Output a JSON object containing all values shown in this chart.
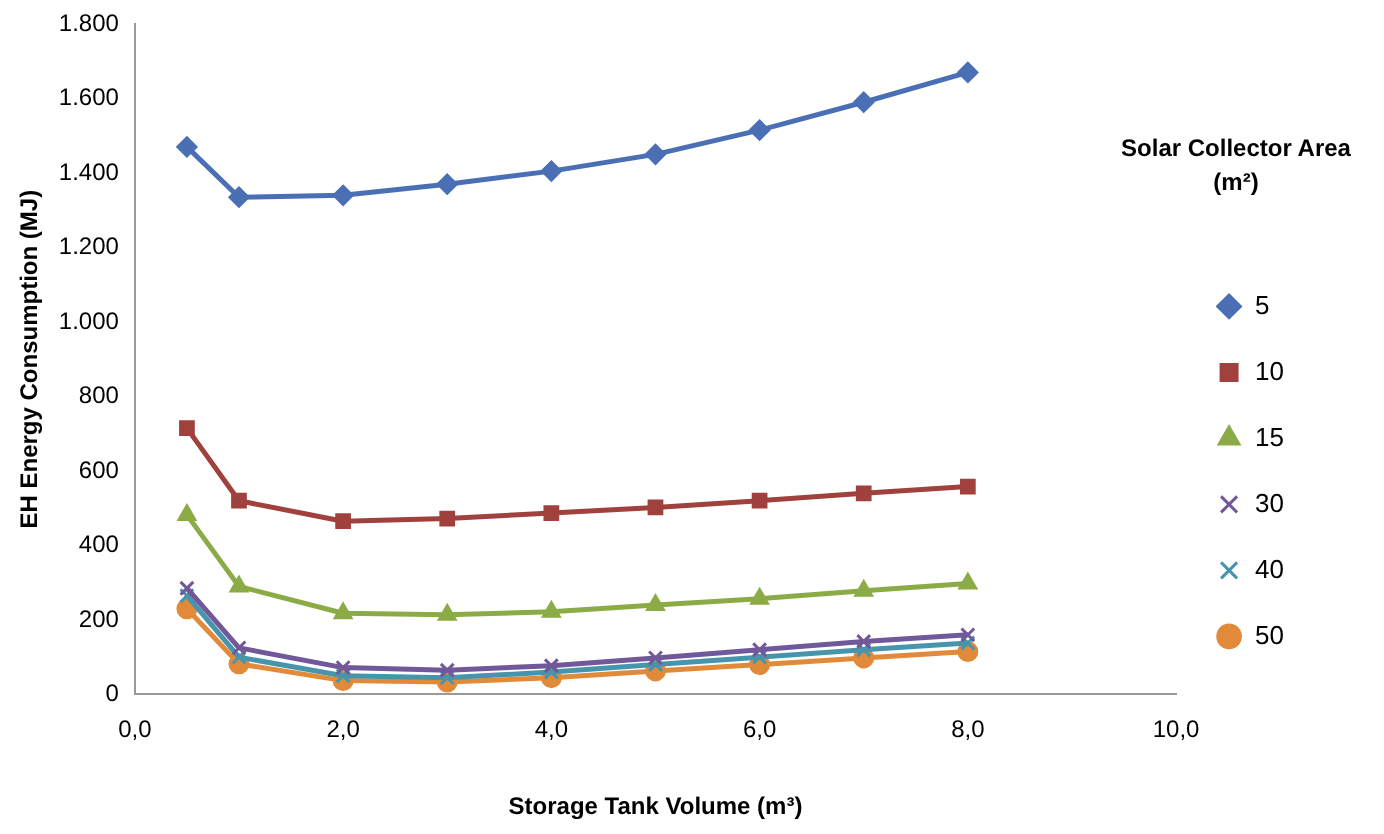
{
  "chart_data": {
    "type": "line",
    "xlabel": "Storage Tank Volume (m³)",
    "ylabel": "EH Energy Consumption (MJ)",
    "legend_title": "Solar Collector Area (m²)",
    "x": [
      0.5,
      1,
      2,
      3,
      4,
      5,
      6,
      7,
      8
    ],
    "xlim": [
      0,
      10
    ],
    "xticks": [
      {
        "value": 0,
        "label": "0,0"
      },
      {
        "value": 2,
        "label": "2,0"
      },
      {
        "value": 4,
        "label": "4,0"
      },
      {
        "value": 6,
        "label": "6,0"
      },
      {
        "value": 8,
        "label": "8,0"
      },
      {
        "value": 10,
        "label": "10,0"
      }
    ],
    "ylim": [
      0,
      1800
    ],
    "yticks": [
      0,
      200,
      400,
      600,
      800,
      {
        "value": 1000,
        "label": "1.000"
      },
      {
        "value": 1200,
        "label": "1.200"
      },
      {
        "value": 1400,
        "label": "1.400"
      },
      {
        "value": 1600,
        "label": "1.600"
      },
      {
        "value": 1800,
        "label": "1.800"
      }
    ],
    "grid": false,
    "legend": "right",
    "line_style": "solid",
    "series": [
      {
        "name": "5",
        "color": "#4a6fb5",
        "marker": "diamond",
        "values": [
          1470,
          1335,
          1340,
          1370,
          1405,
          1450,
          1515,
          1590,
          1670
        ]
      },
      {
        "name": "10",
        "color": "#a0413e",
        "marker": "square",
        "values": [
          715,
          520,
          465,
          472,
          487,
          502,
          520,
          540,
          558
        ]
      },
      {
        "name": "15",
        "color": "#8bab46",
        "marker": "triangle",
        "values": [
          482,
          290,
          218,
          214,
          222,
          240,
          257,
          278,
          298
        ]
      },
      {
        "name": "30",
        "color": "#71589a",
        "marker": "cross",
        "values": [
          285,
          125,
          72,
          65,
          77,
          98,
          120,
          142,
          160
        ]
      },
      {
        "name": "40",
        "color": "#4695ad",
        "marker": "cross",
        "values": [
          265,
          100,
          50,
          45,
          60,
          80,
          100,
          120,
          138
        ]
      },
      {
        "name": "50",
        "color": "#e08a3a",
        "marker": "circle",
        "values": [
          230,
          82,
          37,
          33,
          45,
          63,
          80,
          98,
          115
        ]
      }
    ]
  }
}
